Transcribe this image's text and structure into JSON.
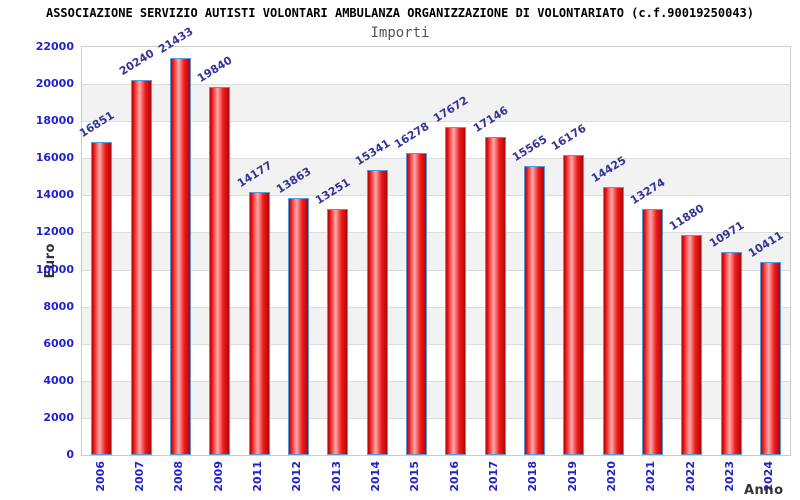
{
  "header": {
    "title": "ASSOCIAZIONE SERVIZIO AUTISTI VOLONTARI AMBULANZA ORGANIZZAZIONE DI VOLONTARIATO (c.f.90019250043)",
    "subtitle": "Importi"
  },
  "chart_data": {
    "type": "bar",
    "title": "Importi",
    "categories": [
      "2006",
      "2007",
      "2008",
      "2009",
      "2011",
      "2012",
      "2013",
      "2014",
      "2015",
      "2016",
      "2017",
      "2018",
      "2019",
      "2020",
      "2021",
      "2022",
      "2023",
      "2024"
    ],
    "values": [
      16851,
      20240,
      21433,
      19840,
      14177,
      13863,
      13251,
      15341,
      16278,
      17672,
      17146,
      15565,
      16176,
      14425,
      13274,
      11880,
      10971,
      10411
    ],
    "xlabel": "Anno",
    "ylabel": "Euro",
    "ylim": [
      0,
      22000
    ],
    "ytick_step": 2000,
    "grid": true,
    "legend": "none",
    "band_fill": "alternating horizontal bands every 2000"
  },
  "colors": {
    "subtitle_text": "#555555",
    "tick_text": "#2222cc",
    "value_text": "#333399",
    "axis_title_text": "#333333",
    "bar_border": "#5599dd",
    "bar_dark": "#b40505",
    "bar_mid": "#ee1c1c",
    "bar_light": "#ffabab",
    "band_gray": "#f2f2f2",
    "grid_line": "#dcdcdc",
    "plot_border": "#cccccc"
  }
}
